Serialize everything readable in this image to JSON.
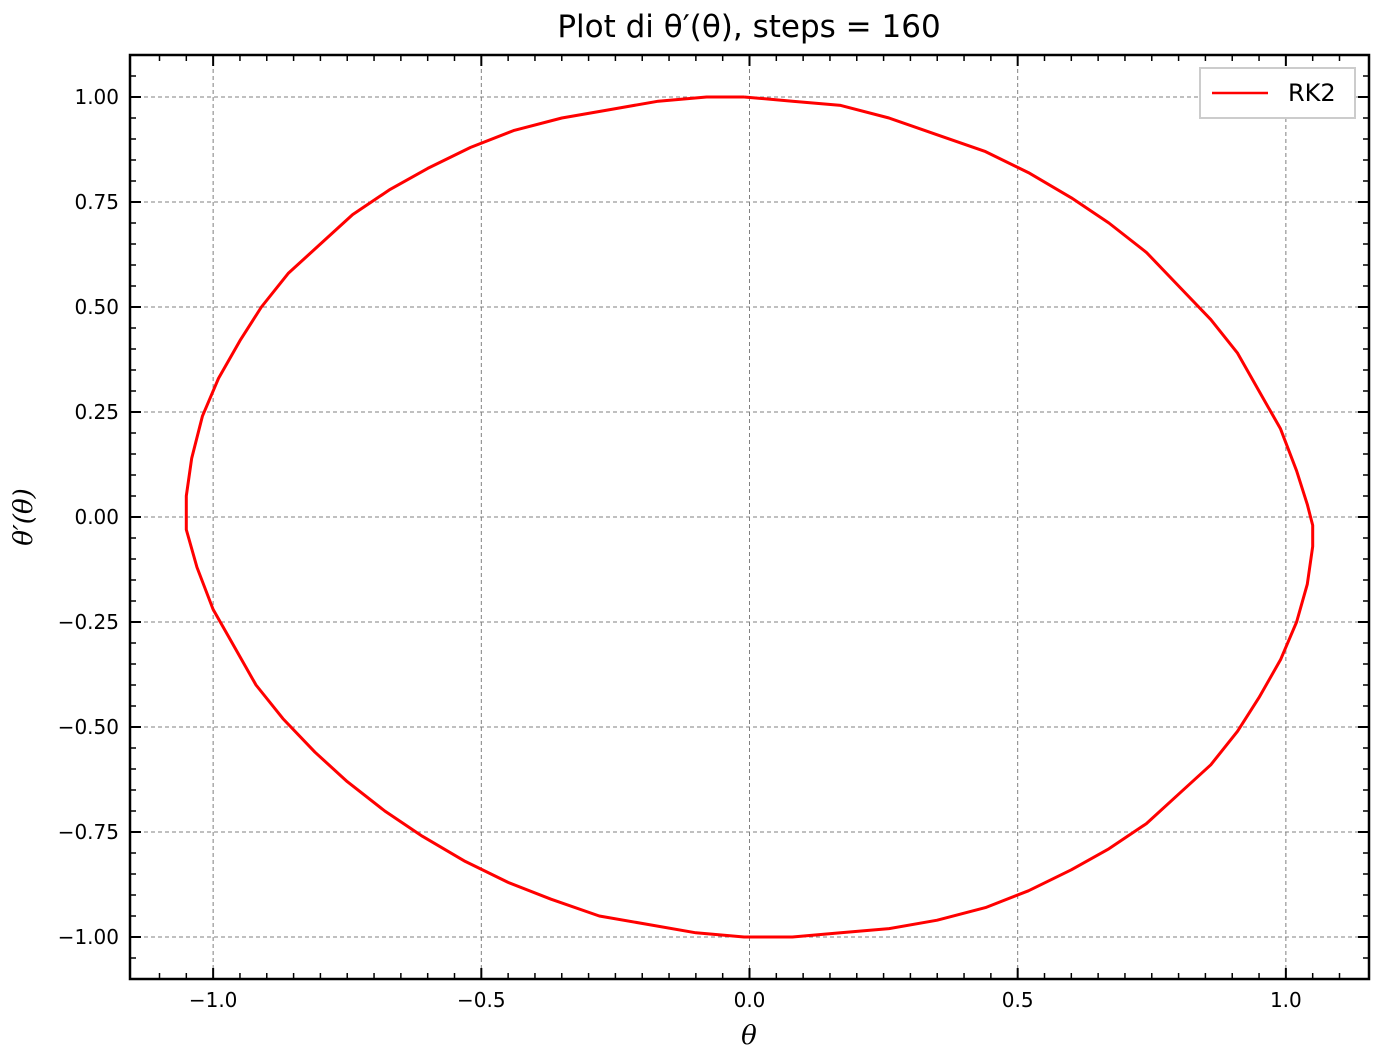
{
  "chart_data": {
    "type": "line",
    "title": "Plot di θ′(θ), steps = 160",
    "xlabel": "θ",
    "ylabel": "θ′(θ)",
    "xlim": [
      -1.155,
      1.155
    ],
    "ylim": [
      -1.1,
      1.1
    ],
    "xticks": [
      -1.0,
      -0.5,
      0.0,
      0.5,
      1.0
    ],
    "xtick_labels": [
      "−1.0",
      "−0.5",
      "0.0",
      "0.5",
      "1.0"
    ],
    "yticks": [
      1.0,
      0.75,
      0.5,
      0.25,
      0.0,
      -0.25,
      -0.5,
      -0.75,
      -1.0
    ],
    "ytick_labels": [
      "1.00",
      "0.75",
      "0.50",
      "0.25",
      "0.00",
      "−0.25",
      "−0.50",
      "−0.75",
      "−1.00"
    ],
    "grid": true,
    "legend_position": "top-right",
    "series": [
      {
        "name": "RK2",
        "color": "#ff0000",
        "x": [
          -0.01,
          0.08,
          0.17,
          0.26,
          0.35,
          0.44,
          0.52,
          0.6,
          0.67,
          0.74,
          0.8,
          0.86,
          0.91,
          0.95,
          0.99,
          1.02,
          1.04,
          1.05,
          1.05,
          1.04,
          1.02,
          0.99,
          0.95,
          0.91,
          0.86,
          0.8,
          0.74,
          0.67,
          0.6,
          0.52,
          0.44,
          0.35,
          0.26,
          0.17,
          0.08,
          -0.01,
          -0.1,
          -0.19,
          -0.28,
          -0.37,
          -0.45,
          -0.53,
          -0.61,
          -0.68,
          -0.75,
          -0.81,
          -0.87,
          -0.92,
          -0.96,
          -1.0,
          -1.03,
          -1.05,
          -1.05,
          -1.05,
          -1.04,
          -1.02,
          -0.99,
          -0.95,
          -0.91,
          -0.86,
          -0.8,
          -0.74,
          -0.67,
          -0.6,
          -0.52,
          -0.44,
          -0.35,
          -0.26,
          -0.17,
          -0.08,
          -0.01
        ],
        "y": [
          1.0,
          0.99,
          0.98,
          0.95,
          0.91,
          0.87,
          0.82,
          0.76,
          0.7,
          0.63,
          0.55,
          0.47,
          0.39,
          0.3,
          0.21,
          0.11,
          0.03,
          -0.02,
          -0.07,
          -0.16,
          -0.25,
          -0.34,
          -0.43,
          -0.51,
          -0.59,
          -0.66,
          -0.73,
          -0.79,
          -0.84,
          -0.89,
          -0.93,
          -0.96,
          -0.98,
          -0.99,
          -1.0,
          -1.0,
          -0.99,
          -0.97,
          -0.95,
          -0.91,
          -0.87,
          -0.82,
          -0.76,
          -0.7,
          -0.63,
          -0.56,
          -0.48,
          -0.4,
          -0.31,
          -0.22,
          -0.12,
          -0.03,
          0.0,
          0.05,
          0.14,
          0.24,
          0.33,
          0.42,
          0.5,
          0.58,
          0.65,
          0.72,
          0.78,
          0.83,
          0.88,
          0.92,
          0.95,
          0.97,
          0.99,
          1.0,
          1.0
        ]
      }
    ]
  }
}
